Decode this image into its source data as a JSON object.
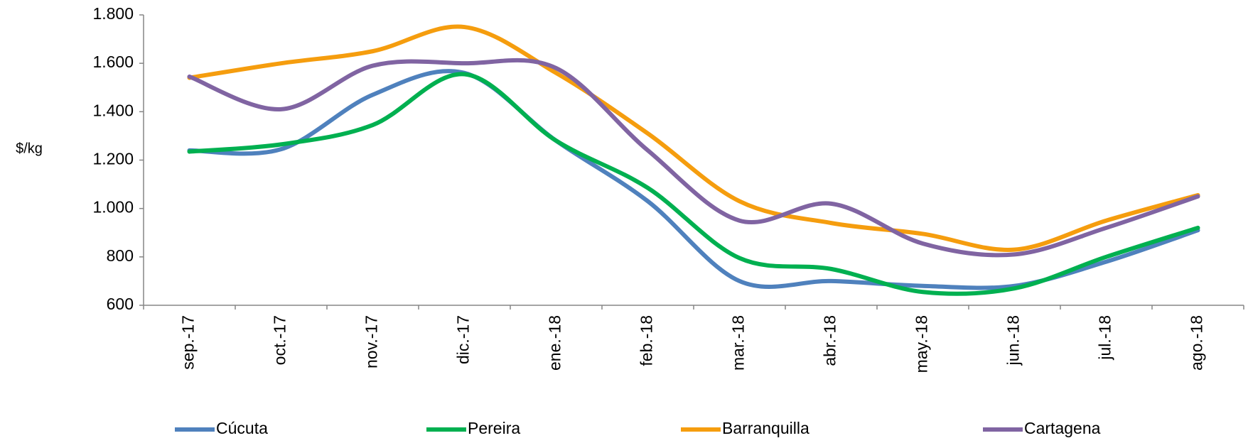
{
  "chart_data": {
    "type": "line",
    "y_label": "$/kg",
    "categories": [
      "sep.-17",
      "oct.-17",
      "nov.-17",
      "dic.-17",
      "ene.-18",
      "feb.-18",
      "mar.-18",
      "abr.-18",
      "may.-18",
      "jun.-18",
      "jul.-18",
      "ago.-18"
    ],
    "series": [
      {
        "name": "Cúcuta",
        "color": "#4f81bd",
        "values": [
          1240,
          1245,
          1470,
          1560,
          1280,
          1030,
          700,
          700,
          680,
          680,
          780,
          910
        ]
      },
      {
        "name": "Pereira",
        "color": "#00b050",
        "values": [
          1235,
          1265,
          1345,
          1555,
          1280,
          1085,
          795,
          750,
          655,
          670,
          800,
          920
        ]
      },
      {
        "name": "Barranquilla",
        "color": "#f59d0e",
        "values": [
          1540,
          1600,
          1650,
          1750,
          1560,
          1310,
          1030,
          940,
          895,
          830,
          950,
          1055
        ]
      },
      {
        "name": "Cartagena",
        "color": "#8064a2",
        "values": [
          1545,
          1410,
          1590,
          1600,
          1580,
          1240,
          950,
          1020,
          855,
          810,
          920,
          1050
        ]
      }
    ],
    "ylim": [
      600,
      1800
    ],
    "yticks": [
      600,
      800,
      {
        "value": 1000,
        "label": "1.000"
      },
      {
        "value": 1200,
        "label": "1.200"
      },
      {
        "value": 1400,
        "label": "1.400"
      },
      {
        "value": 1600,
        "label": "1.600"
      },
      {
        "value": 1800,
        "label": "1.800"
      }
    ],
    "smooth": true,
    "legend": "bottom"
  }
}
